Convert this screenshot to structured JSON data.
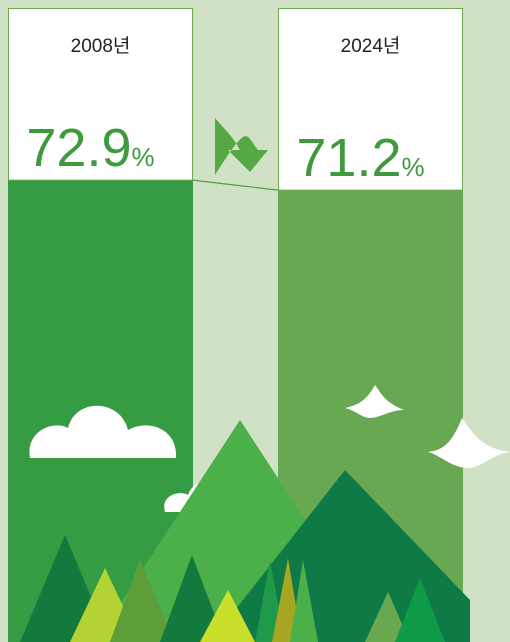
{
  "chart_data": {
    "type": "bar",
    "categories": [
      "2008년",
      "2024년"
    ],
    "values": [
      72.9,
      71.2
    ],
    "unit": "%",
    "colors": [
      "#359c44",
      "#68a853"
    ],
    "label_color": "#3f9a3e"
  }
}
